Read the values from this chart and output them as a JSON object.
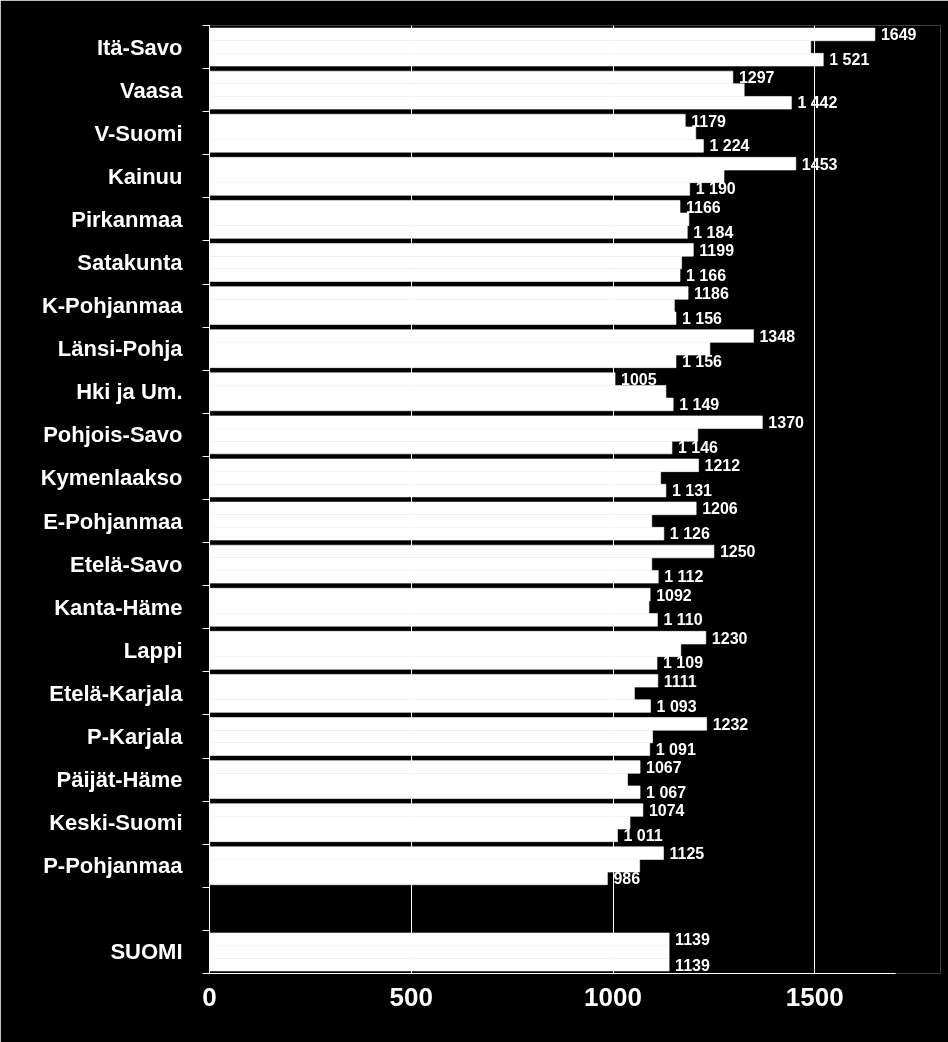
{
  "chart_data": {
    "type": "bar",
    "orientation": "horizontal",
    "categories": [
      "Itä-Savo",
      "Vaasa",
      "V-Suomi",
      "Kainuu",
      "Pirkanmaa",
      "Satakunta",
      "K-Pohjanmaa",
      "Länsi-Pohja",
      "Hki ja Um.",
      "Pohjois-Savo",
      "Kymenlaakso",
      "E-Pohjanmaa",
      "Etelä-Savo",
      "Kanta-Häme",
      "Lappi",
      "Etelä-Karjala",
      "P-Karjala",
      "Päijät-Häme",
      "Keski-Suomi",
      "P-Pohjanmaa",
      null,
      "SUOMI"
    ],
    "series": [
      {
        "color": "#ffffff",
        "values": [
          1649,
          1297,
          1179,
          1453,
          1166,
          1199,
          1186,
          1348,
          1005,
          1370,
          1212,
          1206,
          1250,
          1092,
          1230,
          1111,
          1232,
          1067,
          1074,
          1125,
          null,
          1139
        ],
        "value_labels": [
          "1649",
          "1297",
          "1179",
          "1453",
          "1166",
          "1199",
          "1186",
          "1348",
          "1005",
          "1370",
          "1212",
          "1206",
          "1250",
          "1092",
          "1230",
          "1111",
          "1232",
          "1067",
          "1074",
          "1125",
          null,
          "1139"
        ]
      },
      {
        "color": "#ffffff",
        "values": [
          1490,
          1325,
          1205,
          1275,
          1188,
          1170,
          1152,
          1240,
          1131,
          1210,
          1118,
          1096,
          1096,
          1089,
          1168,
          1053,
          1098,
          1036,
          1042,
          1066,
          null,
          1139
        ]
      },
      {
        "color": "#ffffff",
        "values": [
          1521,
          1442,
          1224,
          1190,
          1184,
          1166,
          1156,
          1156,
          1149,
          1146,
          1131,
          1126,
          1112,
          1110,
          1109,
          1093,
          1091,
          1067,
          1011,
          986,
          null,
          1139
        ],
        "value_labels": [
          "1 521",
          "1 442",
          "1 224",
          "1 190",
          "1 184",
          "1 166",
          "1 156",
          "1 156",
          "1 149",
          "1 146",
          "1 131",
          "1 126",
          "1 112",
          "1 110",
          "1 109",
          "1 093",
          "1 091",
          "1 067",
          "1 011",
          "986",
          null,
          "1139"
        ]
      }
    ],
    "xlim": [
      0,
      1700
    ],
    "xticks": [
      0,
      500,
      1000,
      1500
    ],
    "grid": "x"
  }
}
